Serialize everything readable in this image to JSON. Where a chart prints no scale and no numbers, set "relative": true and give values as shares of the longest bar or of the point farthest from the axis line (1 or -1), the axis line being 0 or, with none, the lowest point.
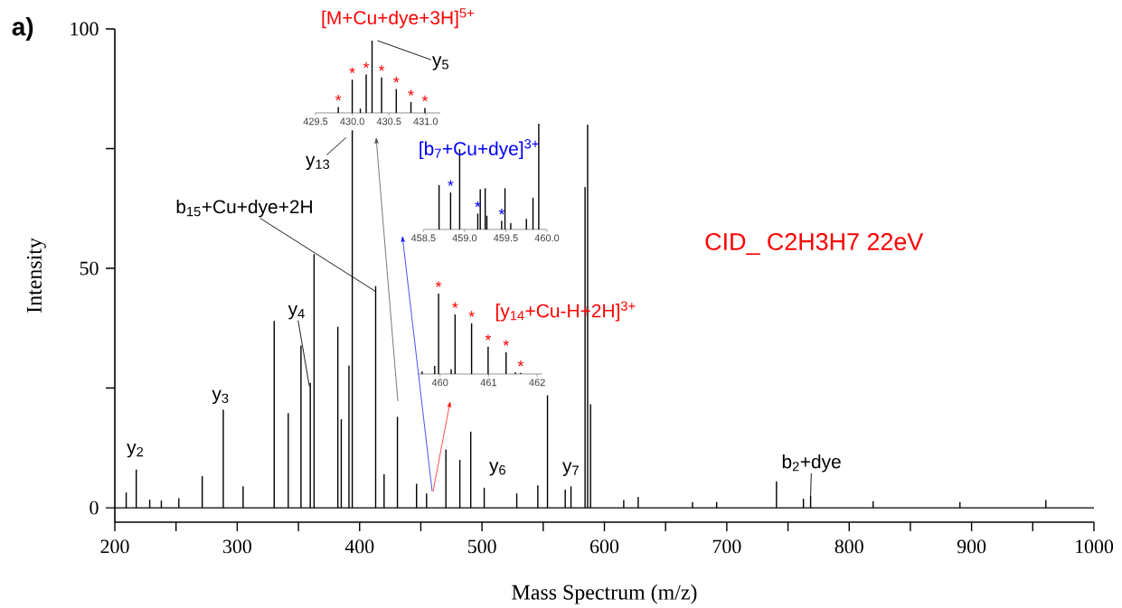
{
  "chart_data": [
    {
      "type": "bar",
      "xlabel": "Mass Spectrum (m/z)",
      "ylabel": "Intensity",
      "color": "#000000",
      "x": [
        209.3,
        217.5,
        228.5,
        238,
        252.3,
        271.4,
        288.6,
        304.8,
        330.2,
        341.7,
        352.1,
        359.7,
        362.8,
        382.2,
        385,
        391.3,
        394,
        413.1,
        420,
        430.9,
        446.5,
        454.7,
        470.5,
        481.9,
        490.8,
        501.8,
        528.4,
        545.6,
        553.5,
        568,
        572.7,
        584.2,
        586.3,
        588.7,
        615.8,
        627.6,
        672,
        691.7,
        740.6,
        762.6,
        768.5,
        819.6,
        890.5,
        960.7
      ],
      "values": [
        3.2,
        8,
        1.7,
        1.5,
        2,
        6.6,
        20.5,
        4.5,
        39,
        19.8,
        33.9,
        26.1,
        53,
        37.8,
        18.5,
        29.7,
        78.8,
        46.3,
        7,
        19,
        5,
        3,
        12.2,
        10,
        15.9,
        4.2,
        3,
        4.7,
        23.5,
        3.8,
        4.5,
        67,
        80,
        21.6,
        1.6,
        2.3,
        1.2,
        1.2,
        5.5,
        1.9,
        2.5,
        1.4,
        1.2,
        1.6
      ],
      "xlim": [
        200,
        1000
      ],
      "ylim": [
        -3,
        100
      ],
      "xticks": [
        200,
        {
          "value": 250,
          "label": null
        },
        300,
        {
          "value": 350,
          "label": null
        },
        400,
        {
          "value": 450,
          "label": null
        },
        500,
        {
          "value": 550,
          "label": null
        },
        600,
        {
          "value": 650,
          "label": null
        },
        700,
        {
          "value": 750,
          "label": null
        },
        800,
        {
          "value": 850,
          "label": null
        },
        900,
        {
          "value": 950,
          "label": null
        },
        1000
      ],
      "yticks": [
        0,
        {
          "value": 25,
          "label": null
        },
        50,
        {
          "value": 75,
          "label": null
        },
        100
      ],
      "ref_lines": [
        {
          "axis": "y",
          "value": 0,
          "color": "#000000"
        }
      ],
      "annotations": [
        "a)",
        "CID_ C2H3H7 22eV",
        {
          "text": "y$_{2}$",
          "x": 217.5,
          "y": 8
        },
        {
          "text": "y$_{3}$",
          "x": 288.6,
          "y": 20.5
        },
        {
          "text": "y$_{4}$",
          "x": 359.7,
          "y": 26.1
        },
        {
          "text": "y$_{13}$",
          "x": 394,
          "y": 78.8
        },
        {
          "text": "b$_{15}$+Cu+dye+2H",
          "x": 413.1,
          "y": 46.3
        },
        {
          "text": "y$_{6}$",
          "x": 501.8,
          "y": 4.2
        },
        {
          "text": "y$_{7}$",
          "x": 572.7,
          "y": 4.5
        },
        {
          "text": "b$_{2}$+dye",
          "x": 768.5,
          "y": 2.5
        }
      ]
    },
    {
      "type": "bar",
      "relative": true,
      "title": "[M+Cu+dye+3H]$^{5+}$",
      "color": "#000000",
      "x": [
        429.81,
        430.0,
        430.11,
        430.19,
        430.27,
        430.4,
        430.6,
        430.8,
        430.99
      ],
      "values": [
        0.08,
        0.46,
        0.06,
        0.53,
        1,
        0.49,
        0.33,
        0.15,
        0.07
      ],
      "xlim": [
        429.5,
        431.2
      ],
      "xticks": [
        429.5,
        {
          "value": 430,
          "label": "430.0"
        },
        430.5,
        {
          "value": 431,
          "label": "431.0"
        }
      ],
      "annotations": [
        {
          "text": "y$_{5}$",
          "x": 430.27,
          "y": 1
        },
        {
          "text": "*",
          "x": 429.81,
          "y": 0.08
        },
        {
          "text": "*",
          "x": 430.0,
          "y": 0.46
        },
        {
          "text": "*",
          "x": 430.19,
          "y": 0.53
        },
        {
          "text": "*",
          "x": 430.4,
          "y": 0.49
        },
        {
          "text": "*",
          "x": 430.6,
          "y": 0.33
        },
        {
          "text": "*",
          "x": 430.8,
          "y": 0.15
        },
        {
          "text": "*",
          "x": 430.99,
          "y": 0.07
        }
      ]
    },
    {
      "type": "bar",
      "relative": true,
      "title": "[b$_{7}$+Cu+dye]$^{3+}$",
      "color": "#000000",
      "x": [
        458.69,
        458.83,
        458.94,
        459.16,
        459.19,
        459.25,
        459.27,
        459.45,
        459.49,
        459.56,
        459.75,
        459.83,
        459.9
      ],
      "values": [
        0.42,
        0.35,
        0.76,
        0.15,
        0.38,
        0.39,
        0.13,
        0.08,
        0.39,
        0.06,
        0.1,
        0.3,
        1
      ],
      "xlim": [
        458.5,
        460.0
      ],
      "xticks": [
        458.5,
        {
          "value": 459,
          "label": "459.0"
        },
        459.5,
        {
          "value": 460,
          "label": "460.0"
        }
      ],
      "annotations": [
        {
          "text": "*",
          "x": 458.83,
          "y": 0.35
        },
        {
          "text": "*",
          "x": 459.16,
          "y": 0.15
        },
        {
          "text": "*",
          "x": 459.45,
          "y": 0.08
        }
      ]
    },
    {
      "type": "bar",
      "relative": true,
      "title": "[y$_{14}$+Cu-H+2H]$^{3+}$",
      "color": "#000000",
      "x": [
        459.63,
        459.89,
        459.97,
        460.23,
        460.31,
        460.65,
        460.99,
        461.36,
        461.55,
        461.66
      ],
      "values": [
        0.03,
        0.1,
        1,
        0.06,
        0.74,
        0.63,
        0.34,
        0.27,
        0.02,
        0.015
      ],
      "xlim": [
        459.55,
        462.1
      ],
      "xticks": [
        460,
        461,
        462
      ],
      "annotations": [
        {
          "text": "*",
          "x": 459.97,
          "y": 1
        },
        {
          "text": "*",
          "x": 460.31,
          "y": 0.74
        },
        {
          "text": "*",
          "x": 460.65,
          "y": 0.63
        },
        {
          "text": "*",
          "x": 460.99,
          "y": 0.34
        },
        {
          "text": "*",
          "x": 461.36,
          "y": 0.27
        },
        {
          "text": "*",
          "x": 461.66,
          "y": 0.015
        }
      ]
    }
  ]
}
